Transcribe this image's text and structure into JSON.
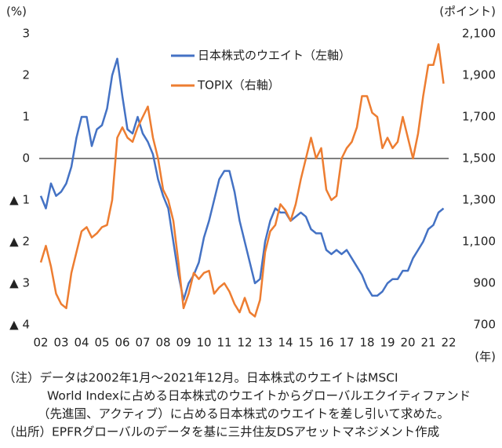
{
  "chart_data": {
    "type": "line",
    "y_label": "(%)",
    "y2_label": "(ポイント)",
    "x_label": "(年)",
    "x": [
      2002,
      2002.25,
      2002.5,
      2002.75,
      2003,
      2003.25,
      2003.5,
      2003.75,
      2004,
      2004.25,
      2004.5,
      2004.75,
      2005,
      2005.25,
      2005.5,
      2005.75,
      2006,
      2006.25,
      2006.5,
      2006.75,
      2007,
      2007.25,
      2007.5,
      2007.75,
      2008,
      2008.25,
      2008.5,
      2008.75,
      2009,
      2009.25,
      2009.5,
      2009.75,
      2010,
      2010.25,
      2010.5,
      2010.75,
      2011,
      2011.25,
      2011.5,
      2011.75,
      2012,
      2012.25,
      2012.5,
      2012.75,
      2013,
      2013.25,
      2013.5,
      2013.75,
      2014,
      2014.25,
      2014.5,
      2014.75,
      2015,
      2015.25,
      2015.5,
      2015.75,
      2016,
      2016.25,
      2016.5,
      2016.75,
      2017,
      2017.25,
      2017.5,
      2017.75,
      2018,
      2018.25,
      2018.5,
      2018.75,
      2019,
      2019.25,
      2019.5,
      2019.75,
      2020,
      2020.25,
      2020.5,
      2020.75,
      2021,
      2021.25,
      2021.5,
      2021.75
    ],
    "series": [
      {
        "name": "日本株式のウエイト（左軸）",
        "color": "#4472c4",
        "axis": "y",
        "values": [
          -0.9,
          -1.2,
          -0.6,
          -0.9,
          -0.8,
          -0.6,
          -0.2,
          0.5,
          1.0,
          1.0,
          0.3,
          0.7,
          0.8,
          1.2,
          2.0,
          2.4,
          1.5,
          0.7,
          0.6,
          1.0,
          0.6,
          0.4,
          0.1,
          -0.5,
          -0.9,
          -1.2,
          -2.0,
          -2.8,
          -3.4,
          -3.0,
          -2.8,
          -2.5,
          -1.9,
          -1.5,
          -1.0,
          -0.5,
          -0.3,
          -0.3,
          -0.8,
          -1.5,
          -2.0,
          -2.5,
          -3.0,
          -2.9,
          -2.0,
          -1.5,
          -1.2,
          -1.3,
          -1.3,
          -1.5,
          -1.4,
          -1.3,
          -1.4,
          -1.7,
          -1.8,
          -1.8,
          -2.2,
          -2.3,
          -2.2,
          -2.3,
          -2.2,
          -2.4,
          -2.6,
          -2.8,
          -3.1,
          -3.3,
          -3.3,
          -3.2,
          -3.0,
          -2.9,
          -2.9,
          -2.7,
          -2.7,
          -2.4,
          -2.2,
          -2.0,
          -1.7,
          -1.6,
          -1.3,
          -1.2
        ]
      },
      {
        "name": "TOPIX（右軸）",
        "color": "#ed7d31",
        "axis": "y2",
        "values": [
          1000,
          1080,
          980,
          850,
          800,
          780,
          950,
          1050,
          1150,
          1170,
          1120,
          1140,
          1170,
          1180,
          1300,
          1600,
          1650,
          1600,
          1580,
          1650,
          1700,
          1750,
          1600,
          1500,
          1350,
          1300,
          1200,
          1000,
          780,
          850,
          950,
          920,
          950,
          960,
          850,
          880,
          900,
          860,
          800,
          760,
          830,
          760,
          740,
          820,
          1050,
          1150,
          1180,
          1280,
          1250,
          1200,
          1280,
          1400,
          1500,
          1600,
          1500,
          1550,
          1350,
          1300,
          1320,
          1500,
          1550,
          1580,
          1650,
          1800,
          1800,
          1720,
          1700,
          1550,
          1600,
          1550,
          1580,
          1700,
          1600,
          1500,
          1620,
          1800,
          1950,
          1950,
          2050,
          1860
        ]
      }
    ],
    "xlim": [
      2002,
      2022
    ],
    "xticks": [
      {
        "value": 2002,
        "label": "02"
      },
      {
        "value": 2003,
        "label": "03"
      },
      {
        "value": 2004,
        "label": "04"
      },
      {
        "value": 2005,
        "label": "05"
      },
      {
        "value": 2006,
        "label": "06"
      },
      {
        "value": 2007,
        "label": "07"
      },
      {
        "value": 2008,
        "label": "08"
      },
      {
        "value": 2009,
        "label": "09"
      },
      {
        "value": 2010,
        "label": "10"
      },
      {
        "value": 2011,
        "label": "11"
      },
      {
        "value": 2012,
        "label": "12"
      },
      {
        "value": 2013,
        "label": "13"
      },
      {
        "value": 2014,
        "label": "14"
      },
      {
        "value": 2015,
        "label": "15"
      },
      {
        "value": 2016,
        "label": "16"
      },
      {
        "value": 2017,
        "label": "17"
      },
      {
        "value": 2018,
        "label": "18"
      },
      {
        "value": 2019,
        "label": "19"
      },
      {
        "value": 2020,
        "label": "20"
      },
      {
        "value": 2021,
        "label": "21"
      },
      {
        "value": 2022,
        "label": "22"
      }
    ],
    "ylim": [
      -4,
      3
    ],
    "yticks": [
      3,
      2,
      1,
      0,
      {
        "value": -1,
        "label": "▲ 1"
      },
      {
        "value": -2,
        "label": "▲ 2"
      },
      {
        "value": -3,
        "label": "▲ 3"
      },
      {
        "value": -4,
        "label": "▲ 4"
      }
    ],
    "y2lim": [
      700,
      2100
    ],
    "y2ticks": [
      {
        "value": 2100,
        "label": "2,100"
      },
      {
        "value": 1900,
        "label": "1,900"
      },
      {
        "value": 1700,
        "label": "1,700"
      },
      {
        "value": 1500,
        "label": "1,500"
      },
      {
        "value": 1300,
        "label": "1,300"
      },
      {
        "value": 1100,
        "label": "1,100"
      },
      {
        "value": 900,
        "label": "900"
      },
      {
        "value": 700,
        "label": "700"
      }
    ],
    "notes": [
      "（注）データは2002年1月～2021年12月。日本株式のウエイトはMSCI",
      "World Indexに占める日本株式のウエイトからグローバルエクイティファンド",
      "（先進国、アクティブ）に占める日本株式のウエイトを差し引いて求めた。",
      "（出所）EPFRグローバルのデータを基に三井住友DSアセットマネジメント作成"
    ]
  }
}
